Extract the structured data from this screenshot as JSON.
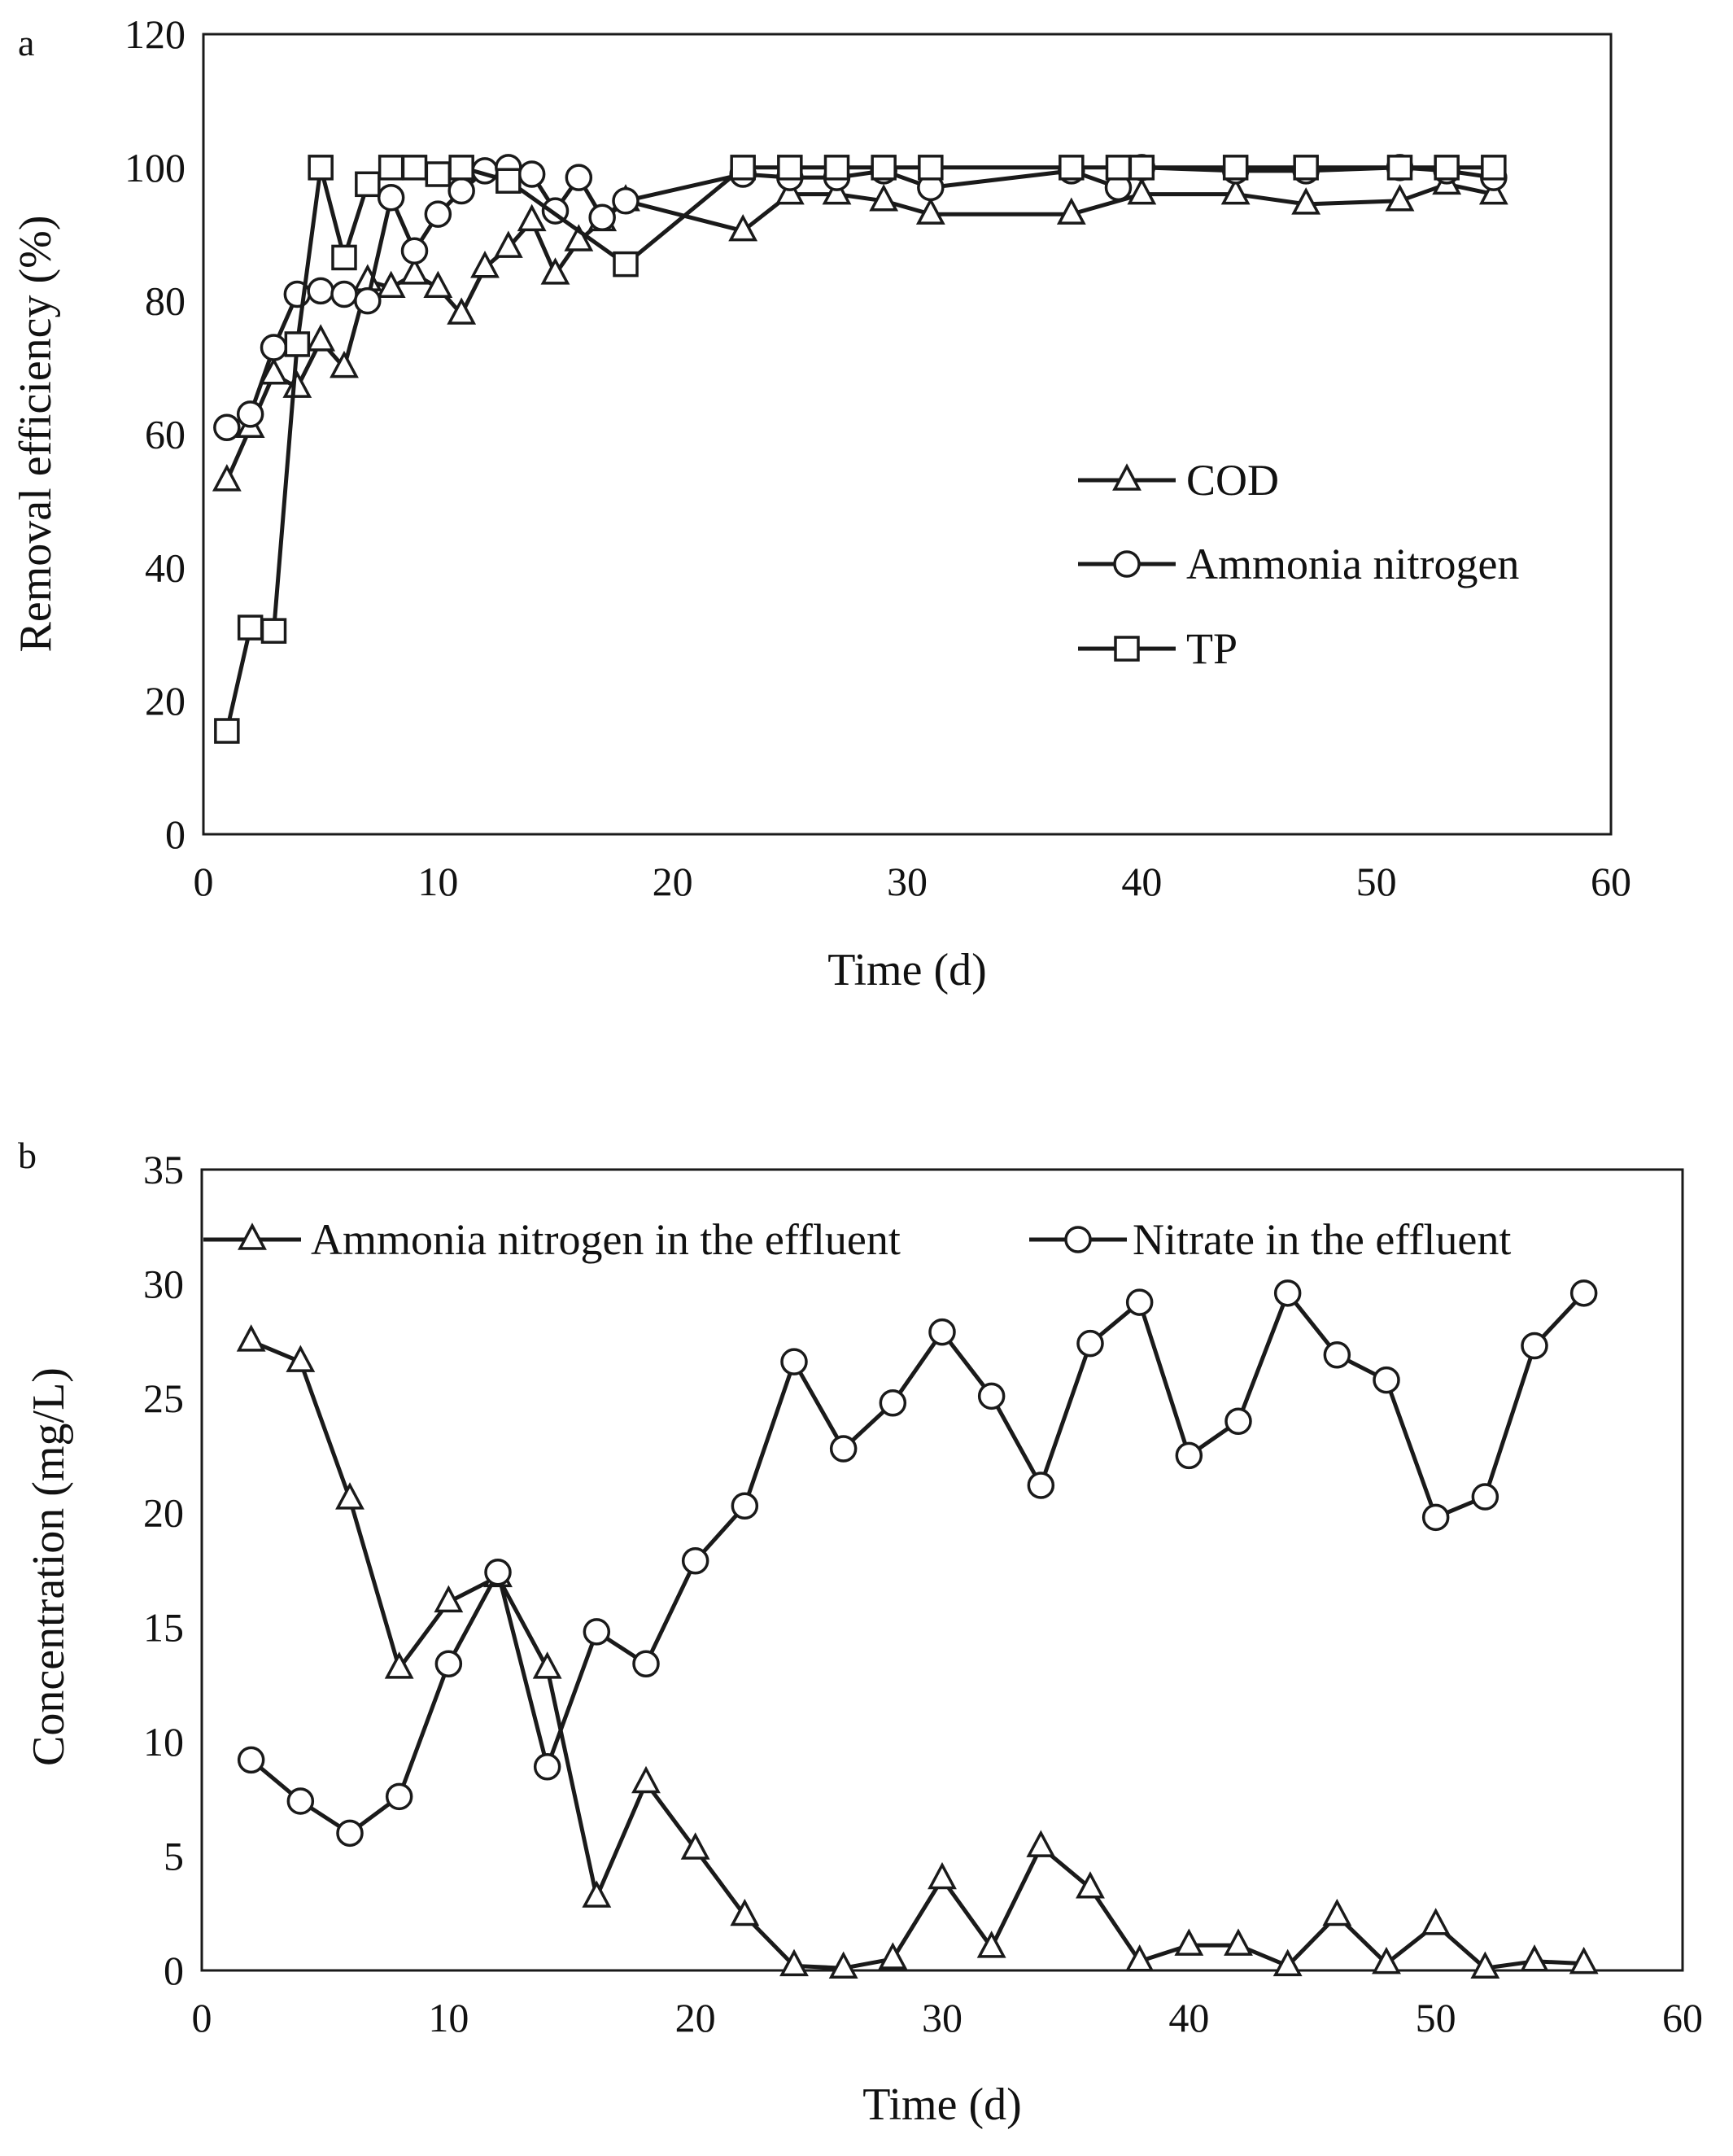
{
  "colors": {
    "ink": "#1a1a1a",
    "background": "#ffffff",
    "marker_fill": "#ffffff"
  },
  "chart_data": [
    {
      "panel": "a",
      "type": "line",
      "xlabel": "Time (d)",
      "ylabel": "Removal efficiency (%)",
      "xlim": [
        0,
        60
      ],
      "ylim": [
        0,
        120
      ],
      "xticks": [
        0,
        10,
        20,
        30,
        40,
        50,
        60
      ],
      "yticks": [
        0,
        20,
        40,
        60,
        80,
        100,
        120
      ],
      "grid": false,
      "legend_position": "right-middle",
      "series": [
        {
          "name": "COD",
          "marker": "triangle",
          "x": [
            1,
            2,
            3,
            4,
            5,
            6,
            7,
            8,
            9,
            10,
            11,
            12,
            13,
            14,
            15,
            16,
            17,
            18,
            23,
            25,
            27,
            29,
            31,
            37,
            40,
            44,
            47,
            51,
            53,
            55
          ],
          "y": [
            53,
            61,
            69,
            67,
            74,
            70,
            83,
            82,
            84,
            82,
            78,
            85,
            88,
            92,
            84,
            89,
            92,
            95,
            90.5,
            96,
            96,
            95,
            93,
            93,
            96,
            96,
            94.5,
            95,
            97.5,
            96
          ]
        },
        {
          "name": "Ammonia nitrogen",
          "marker": "circle",
          "x": [
            1,
            2,
            3,
            4,
            5,
            6,
            7,
            8,
            9,
            10,
            11,
            12,
            13,
            14,
            15,
            16,
            17,
            18,
            23,
            25,
            27,
            29,
            31,
            37,
            39,
            40,
            44,
            47,
            51,
            53,
            55
          ],
          "y": [
            61,
            63,
            73,
            81,
            81.5,
            81,
            80,
            95.5,
            87.5,
            93,
            96.5,
            99.5,
            100,
            99,
            93.5,
            98.5,
            92.5,
            95,
            99,
            98.5,
            98.5,
            99.5,
            97,
            99.5,
            97,
            100,
            99.5,
            99.5,
            100,
            99.5,
            98.5
          ]
        },
        {
          "name": "TP",
          "marker": "square",
          "x": [
            1,
            2,
            3,
            4,
            5,
            6,
            7,
            8,
            9,
            10,
            11,
            13,
            18,
            23,
            25,
            27,
            29,
            31,
            37,
            39,
            40,
            44,
            47,
            51,
            53,
            55
          ],
          "y": [
            15.5,
            31,
            30.5,
            73.5,
            100,
            86.5,
            97.5,
            100,
            100,
            99,
            100,
            98,
            85.5,
            100,
            100,
            100,
            100,
            100,
            100,
            100,
            100,
            100,
            100,
            100,
            100,
            100
          ]
        }
      ]
    },
    {
      "panel": "b",
      "type": "line",
      "xlabel": "Time (d)",
      "ylabel": "Concentration (mg/L)",
      "xlim": [
        0,
        60
      ],
      "ylim": [
        0,
        35
      ],
      "xticks": [
        0,
        10,
        20,
        30,
        40,
        50,
        60
      ],
      "yticks": [
        0,
        5,
        10,
        15,
        20,
        25,
        30,
        35
      ],
      "grid": false,
      "legend_position": "top",
      "series": [
        {
          "name": "Ammonia nitrogen in the effluent",
          "marker": "triangle",
          "x": [
            2,
            4,
            6,
            8,
            10,
            12,
            14,
            16,
            18,
            20,
            22,
            24,
            26,
            28,
            30,
            32,
            34,
            36,
            38,
            40,
            42,
            44,
            46,
            48,
            50,
            52,
            54,
            56
          ],
          "y": [
            27.5,
            26.6,
            20.6,
            13.2,
            16.1,
            17.2,
            13.2,
            3.2,
            8.2,
            5.3,
            2.4,
            0.2,
            0.1,
            0.5,
            4,
            1,
            5.4,
            3.6,
            0.4,
            1.1,
            1.1,
            0.2,
            2.4,
            0.3,
            2,
            0.1,
            0.4,
            0.3
          ]
        },
        {
          "name": "Nitrate in the effluent",
          "marker": "circle",
          "x": [
            2,
            4,
            6,
            8,
            10,
            12,
            14,
            16,
            18,
            20,
            22,
            24,
            26,
            28,
            30,
            32,
            34,
            36,
            38,
            40,
            42,
            44,
            46,
            48,
            50,
            52,
            54,
            56
          ],
          "y": [
            9.2,
            7.4,
            6,
            7.6,
            13.4,
            17.4,
            8.9,
            14.8,
            13.4,
            17.9,
            20.3,
            26.6,
            22.8,
            24.8,
            27.9,
            25.1,
            21.2,
            27.4,
            29.2,
            22.5,
            24,
            29.6,
            26.9,
            25.8,
            19.8,
            20.7,
            27.3,
            29.6
          ]
        }
      ]
    }
  ]
}
